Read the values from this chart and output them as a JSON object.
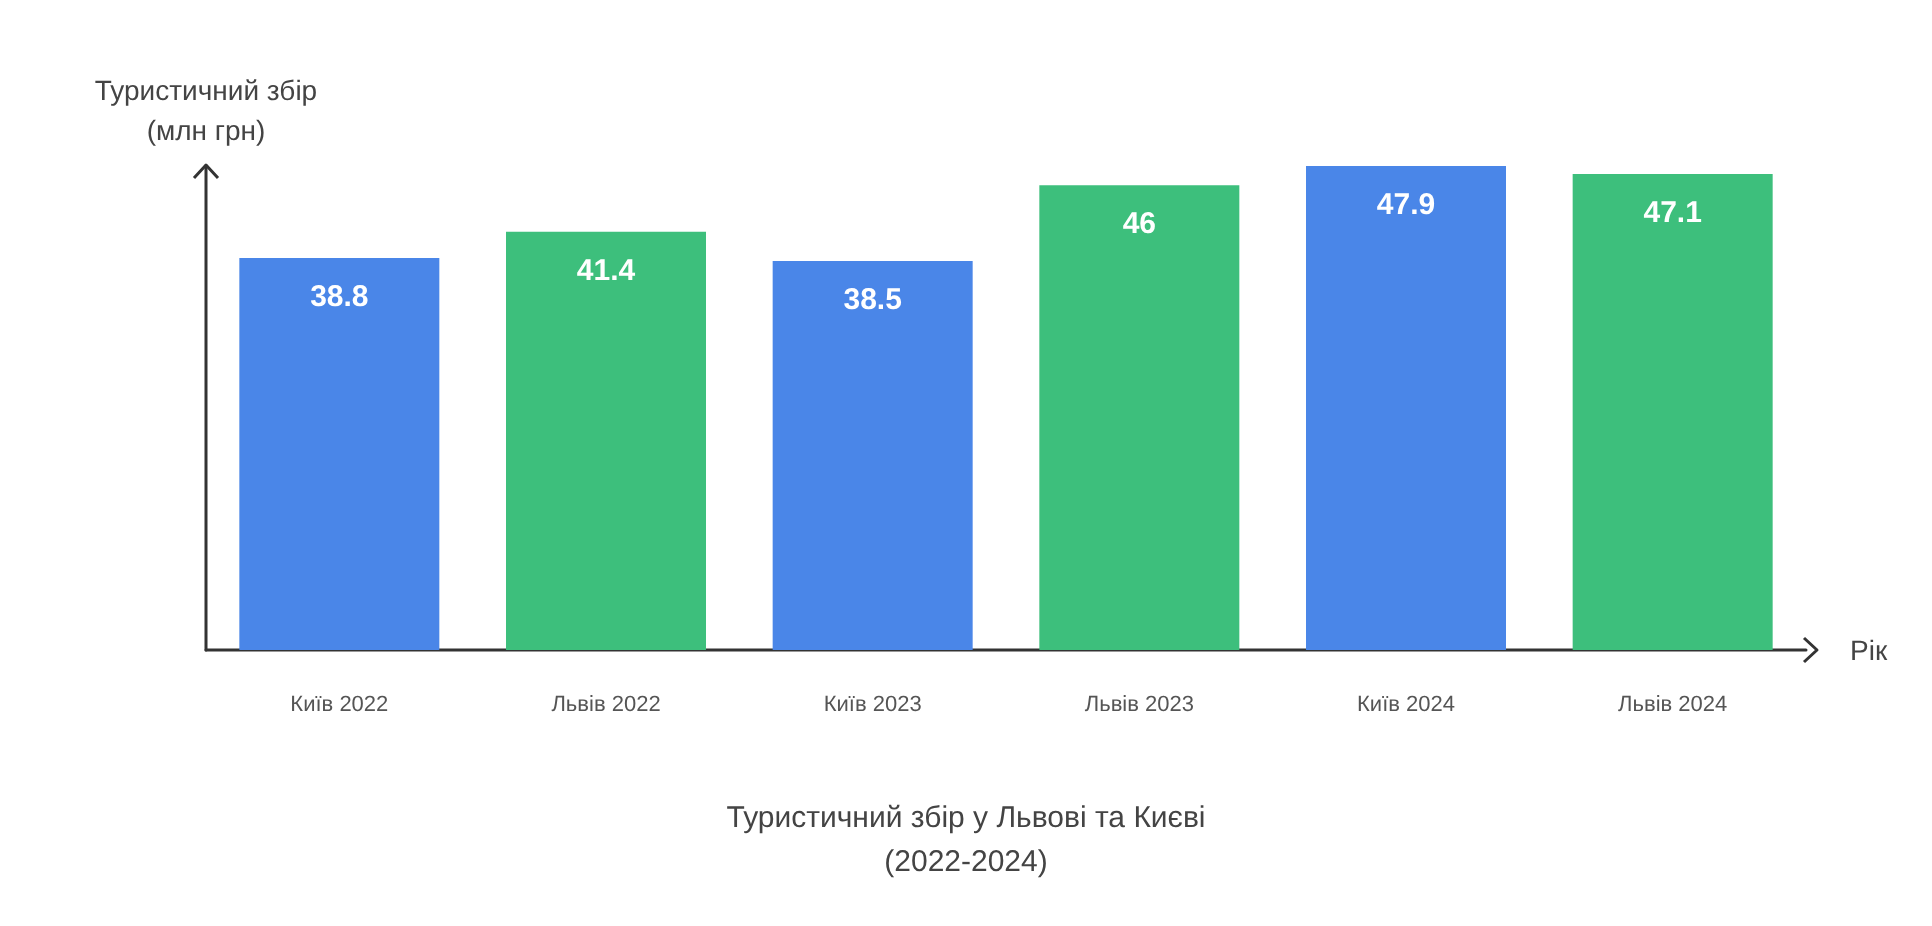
{
  "chart_data": {
    "type": "bar",
    "title": "Туристичний збір у Львові та Києві\n(2022-2024)",
    "xlabel": "Рік",
    "ylabel": "Туристичний збір\n(млн грн)",
    "categories": [
      "Київ 2022",
      "Львів 2022",
      "Київ 2023",
      "Львів 2023",
      "Київ 2024",
      "Львів 2024"
    ],
    "values": [
      38.8,
      41.4,
      38.5,
      46,
      47.9,
      47.1
    ],
    "colors": [
      "#4a86e8",
      "#3dbf7c",
      "#4a86e8",
      "#3dbf7c",
      "#4a86e8",
      "#3dbf7c"
    ],
    "data_labels": true,
    "grid": false
  }
}
